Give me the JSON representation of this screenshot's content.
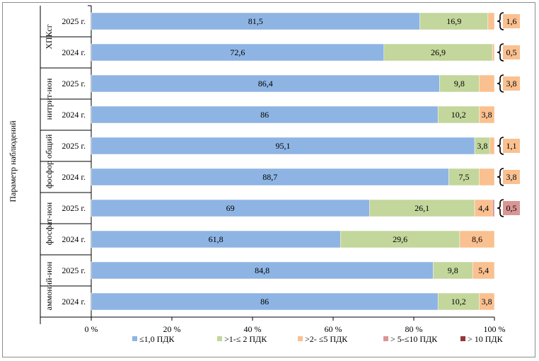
{
  "chart_data": {
    "type": "bar",
    "orientation": "horizontal",
    "stacked": "percent",
    "ylabel": "Параметр наблюдений",
    "xlim": [
      0,
      100
    ],
    "xticks": [
      "0 %",
      "20 %",
      "40 %",
      "60 %",
      "80 %",
      "100 %"
    ],
    "grid": false,
    "legend_position": "bottom",
    "groups": [
      {
        "name": "ХПКсг",
        "categories": [
          "2025 г.",
          "2024 г."
        ]
      },
      {
        "name": "нитрит-ион",
        "categories": [
          "2025 г.",
          "2024 г."
        ]
      },
      {
        "name": "фосфор общий",
        "categories": [
          "2025 г.",
          "2024 г."
        ]
      },
      {
        "name": "фосфат-ион",
        "categories": [
          "2025 г.",
          "2024 г."
        ]
      },
      {
        "name": "аммоний-ион",
        "categories": [
          "2025 г.",
          "2024 г."
        ]
      }
    ],
    "series": [
      {
        "name": "≤1,0 ПДК",
        "color": "#8eb4e3",
        "values": [
          81.5,
          72.6,
          86.4,
          86,
          95.1,
          88.7,
          69,
          61.8,
          84.8,
          86
        ],
        "labels": [
          "81,5",
          "72,6",
          "86,4",
          "86",
          "95,1",
          "88,7",
          "69",
          "61,8",
          "84,8",
          "86"
        ]
      },
      {
        "name": ">1-≤ 2 ПДК",
        "color": "#c3d69b",
        "values": [
          16.9,
          26.9,
          9.8,
          10.2,
          3.8,
          7.5,
          26.1,
          29.6,
          9.8,
          10.2
        ],
        "labels": [
          "16,9",
          "26,9",
          "9,8",
          "10,2",
          "3,8",
          "7,5",
          "26,1",
          "29,6",
          "9,8",
          "10,2"
        ]
      },
      {
        "name": ">2- ≤5 ПДК",
        "color": "#fac090",
        "values": [
          1.6,
          0.5,
          3.8,
          3.8,
          1.1,
          3.8,
          4.4,
          8.6,
          5.4,
          3.8
        ],
        "labels": [
          "1,6",
          "0,5",
          "3,8",
          "3,8",
          "1,1",
          "3,8",
          "4,4",
          "8,6",
          "5,4",
          "3,8"
        ]
      },
      {
        "name": "> 5-≤10 ПДК",
        "color": "#d99694",
        "values": [
          0,
          0,
          0,
          0,
          0,
          0,
          0.5,
          0,
          0,
          0
        ],
        "labels": [
          "",
          "",
          "",
          "",
          "",
          "",
          "0,5",
          "",
          "",
          ""
        ]
      },
      {
        "name": "> 10 ПДК",
        "color": "#953735",
        "values": [
          0,
          0,
          0,
          0,
          0,
          0,
          0,
          0,
          0,
          0
        ],
        "labels": [
          "",
          "",
          "",
          "",
          "",
          "",
          "",
          "",
          "",
          ""
        ]
      }
    ],
    "outside_labels": [
      {
        "row": 0,
        "series": 2,
        "text": "1,6"
      },
      {
        "row": 1,
        "series": 2,
        "text": "0,5"
      },
      {
        "row": 2,
        "series": 2,
        "text": "3,8"
      },
      {
        "row": 4,
        "series": 2,
        "text": "1,1"
      },
      {
        "row": 5,
        "series": 2,
        "text": "3,8"
      },
      {
        "row": 6,
        "series": 3,
        "text": "0,5"
      }
    ]
  }
}
